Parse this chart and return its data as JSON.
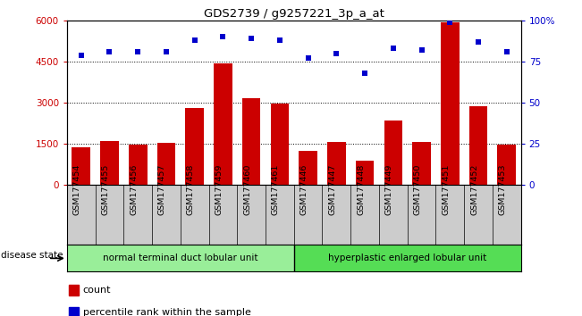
{
  "title": "GDS2739 / g9257221_3p_a_at",
  "categories": [
    "GSM177454",
    "GSM177455",
    "GSM177456",
    "GSM177457",
    "GSM177458",
    "GSM177459",
    "GSM177460",
    "GSM177461",
    "GSM177446",
    "GSM177447",
    "GSM177448",
    "GSM177449",
    "GSM177450",
    "GSM177451",
    "GSM177452",
    "GSM177453"
  ],
  "bar_values": [
    1380,
    1600,
    1480,
    1520,
    2820,
    4420,
    3150,
    2980,
    1240,
    1560,
    880,
    2340,
    1570,
    5940,
    2880,
    1470
  ],
  "dot_values": [
    79,
    81,
    81,
    81,
    88,
    90,
    89,
    88,
    77,
    80,
    68,
    83,
    82,
    99,
    87,
    81
  ],
  "bar_color": "#cc0000",
  "dot_color": "#0000cc",
  "ylim_left": [
    0,
    6000
  ],
  "ylim_right": [
    0,
    100
  ],
  "yticks_left": [
    0,
    1500,
    3000,
    4500,
    6000
  ],
  "yticks_right": [
    0,
    25,
    50,
    75,
    100
  ],
  "ytick_labels_right": [
    "0",
    "25",
    "50",
    "75",
    "100%"
  ],
  "group1_label": "normal terminal duct lobular unit",
  "group2_label": "hyperplastic enlarged lobular unit",
  "group1_count": 8,
  "group2_count": 8,
  "disease_state_label": "disease state",
  "legend_count_label": "count",
  "legend_percentile_label": "percentile rank within the sample",
  "bg_color": "#ffffff",
  "tick_area_color": "#cccccc",
  "group_bg_color": "#99ee99",
  "group_bg_color2": "#55dd55"
}
